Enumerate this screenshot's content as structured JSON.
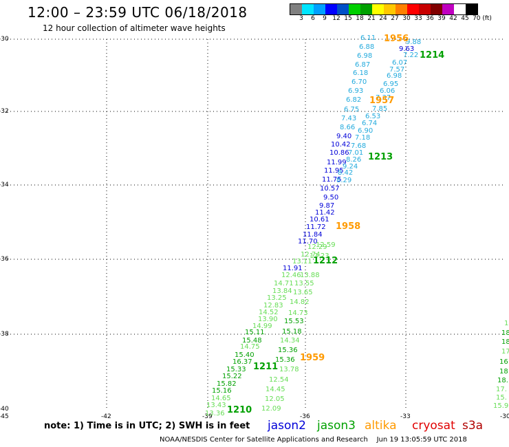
{
  "header": {
    "title": "12:00 – 23:59 UTC 06/18/2018",
    "subtitle": "12 hour collection of altimeter wave heights"
  },
  "scale": {
    "colors": [
      "#808080",
      "#00e5ff",
      "#00a0ff",
      "#0000ff",
      "#0050c8",
      "#00d000",
      "#00a000",
      "#ffff00",
      "#ffc800",
      "#ff8000",
      "#ff0000",
      "#c80000",
      "#800000",
      "#c000c0",
      "#ffffff",
      "#000000"
    ],
    "labels": [
      "3",
      "6",
      "9",
      "12",
      "15",
      "18",
      "21",
      "24",
      "27",
      "30",
      "33",
      "36",
      "39",
      "42",
      "45",
      "70 (ft)"
    ]
  },
  "axes": {
    "y_labels": [
      "-30",
      "-32",
      "-34",
      "-36",
      "-38",
      "-40"
    ],
    "x_labels": [
      "-45",
      "-42",
      "-39",
      "-36",
      "-33",
      "-30"
    ]
  },
  "colors": {
    "jason2": "#0000d8",
    "jason3": "#00a000",
    "altika": "#ff9a00",
    "cryosat": "#e00000",
    "s3a": "#b00000",
    "light_green": "#66dd55",
    "light_blue": "#22aadd"
  },
  "tracks": [
    {
      "name": "altika-1956",
      "values": [
        {
          "t": "6.11",
          "c": "light_blue"
        },
        {
          "t": "6.88",
          "c": "light_blue"
        },
        {
          "t": "6.98",
          "c": "light_blue"
        },
        {
          "t": "6.87",
          "c": "light_blue"
        },
        {
          "t": "6.18",
          "c": "light_blue"
        },
        {
          "t": "6.70",
          "c": "light_blue"
        },
        {
          "t": "6.93",
          "c": "light_blue"
        },
        {
          "t": "6.82",
          "c": "light_blue"
        },
        {
          "t": "6.75",
          "c": "light_blue"
        },
        {
          "t": "7.43",
          "c": "light_blue"
        },
        {
          "t": "8.66",
          "c": "light_blue"
        },
        {
          "t": "9.40",
          "c": "jason2"
        },
        {
          "t": "10.42",
          "c": "jason2"
        },
        {
          "t": "10.86",
          "c": "jason2"
        },
        {
          "t": "11.99",
          "c": "jason2"
        },
        {
          "t": "11.95",
          "c": "jason2"
        },
        {
          "t": "11.75",
          "c": "jason2"
        },
        {
          "t": "10.57",
          "c": "jason2"
        },
        {
          "t": "9.50",
          "c": "jason2"
        },
        {
          "t": "9.87",
          "c": "jason2"
        },
        {
          "t": "11.42",
          "c": "jason2"
        },
        {
          "t": "10.61",
          "c": "jason2"
        },
        {
          "t": "11.72",
          "c": "jason2"
        },
        {
          "t": "11.84",
          "c": "jason2"
        },
        {
          "t": "11.70",
          "c": "jason2"
        }
      ]
    },
    {
      "name": "altika-1957",
      "values": [
        {
          "t": "9.88",
          "c": "light_blue"
        },
        {
          "t": "9.63",
          "c": "jason2"
        },
        {
          "t": "7.22",
          "c": "light_blue"
        },
        {
          "t": "6.07",
          "c": "light_blue"
        },
        {
          "t": "7.57",
          "c": "light_blue"
        },
        {
          "t": "6.98",
          "c": "light_blue"
        },
        {
          "t": "6.95",
          "c": "light_blue"
        },
        {
          "t": "6.06",
          "c": "light_blue"
        },
        {
          "t": "7.37",
          "c": "light_blue"
        },
        {
          "t": "7.85",
          "c": "light_blue"
        },
        {
          "t": "6.53",
          "c": "light_blue"
        },
        {
          "t": "6.74",
          "c": "light_blue"
        },
        {
          "t": "6.90",
          "c": "light_blue"
        },
        {
          "t": "7.18",
          "c": "light_blue"
        },
        {
          "t": "7.68",
          "c": "light_blue"
        },
        {
          "t": "7.01",
          "c": "light_blue"
        },
        {
          "t": "8.26",
          "c": "light_blue"
        },
        {
          "t": "9.24",
          "c": "light_blue"
        },
        {
          "t": "8.42",
          "c": "light_blue"
        },
        {
          "t": "8.29",
          "c": "light_blue"
        }
      ]
    },
    {
      "name": "jason3-1212",
      "values": [
        {
          "t": "12.59",
          "c": "light_green"
        },
        {
          "t": "12.29",
          "c": "light_green"
        },
        {
          "t": "12.74",
          "c": "light_green"
        },
        {
          "t": "13.23",
          "c": "light_green"
        },
        {
          "t": "13.11",
          "c": "light_green"
        },
        {
          "t": "11.91",
          "c": "jason2"
        },
        {
          "t": "12.46",
          "c": "light_green"
        },
        {
          "t": "13.88",
          "c": "light_green"
        },
        {
          "t": "14.71",
          "c": "light_green"
        },
        {
          "t": "13.55",
          "c": "light_green"
        },
        {
          "t": "13.84",
          "c": "light_green"
        },
        {
          "t": "13.65",
          "c": "light_green"
        },
        {
          "t": "13.25",
          "c": "light_green"
        },
        {
          "t": "14.82",
          "c": "light_green"
        },
        {
          "t": "12.83",
          "c": "light_green"
        },
        {
          "t": "14.52",
          "c": "light_green"
        },
        {
          "t": "14.73",
          "c": "light_green"
        },
        {
          "t": "13.90",
          "c": "light_green"
        },
        {
          "t": "15.53",
          "c": "jason3"
        },
        {
          "t": "14.99",
          "c": "light_green"
        },
        {
          "t": "15.18",
          "c": "jason3"
        },
        {
          "t": "15.11",
          "c": "jason3"
        },
        {
          "t": "15.48",
          "c": "jason3"
        },
        {
          "t": "14.34",
          "c": "light_green"
        },
        {
          "t": "14.75",
          "c": "light_green"
        },
        {
          "t": "15.36",
          "c": "jason3"
        },
        {
          "t": "15.40",
          "c": "jason3"
        },
        {
          "t": "16.37",
          "c": "jason3"
        },
        {
          "t": "15.36",
          "c": "jason3"
        },
        {
          "t": "15.33",
          "c": "jason3"
        },
        {
          "t": "13.78",
          "c": "light_green"
        },
        {
          "t": "15.22",
          "c": "jason3"
        },
        {
          "t": "12.54",
          "c": "light_green"
        },
        {
          "t": "15.82",
          "c": "jason3"
        },
        {
          "t": "15.16",
          "c": "jason3"
        },
        {
          "t": "14.45",
          "c": "light_green"
        },
        {
          "t": "14.65",
          "c": "light_green"
        },
        {
          "t": "12.05",
          "c": "light_green"
        },
        {
          "t": "13.43",
          "c": "light_green"
        },
        {
          "t": "12.09",
          "c": "light_green"
        },
        {
          "t": "13.36",
          "c": "light_green"
        }
      ]
    },
    {
      "name": "right-edge",
      "values": [
        {
          "t": "17",
          "c": "light_green"
        },
        {
          "t": "18",
          "c": "jason3"
        },
        {
          "t": "18",
          "c": "jason3"
        },
        {
          "t": "17",
          "c": "light_green"
        },
        {
          "t": "16",
          "c": "jason3"
        },
        {
          "t": "18",
          "c": "jason3"
        },
        {
          "t": "18.",
          "c": "jason3"
        },
        {
          "t": "17.",
          "c": "light_green"
        },
        {
          "t": "15.",
          "c": "light_green"
        },
        {
          "t": "15.9",
          "c": "light_green"
        }
      ]
    }
  ],
  "pass_labels": [
    {
      "t": "1956",
      "c": "altika"
    },
    {
      "t": "1214",
      "c": "jason3"
    },
    {
      "t": "1957",
      "c": "altika"
    },
    {
      "t": "1213",
      "c": "jason3"
    },
    {
      "t": "1958",
      "c": "altika"
    },
    {
      "t": "1212",
      "c": "jason3"
    },
    {
      "t": "1959",
      "c": "altika"
    },
    {
      "t": "1211",
      "c": "jason3"
    },
    {
      "t": "1210",
      "c": "jason3"
    }
  ],
  "footer": {
    "note": "note: 1) Time is in UTC; 2) SWH is in feet",
    "legend": [
      "jason2",
      "jason3",
      "altika",
      "cryosat",
      "s3a"
    ],
    "credit": "NOAA/NESDIS Center for Satellite Applications and Research",
    "timestamp": "Jun 19 13:05:59 UTC 2018"
  }
}
